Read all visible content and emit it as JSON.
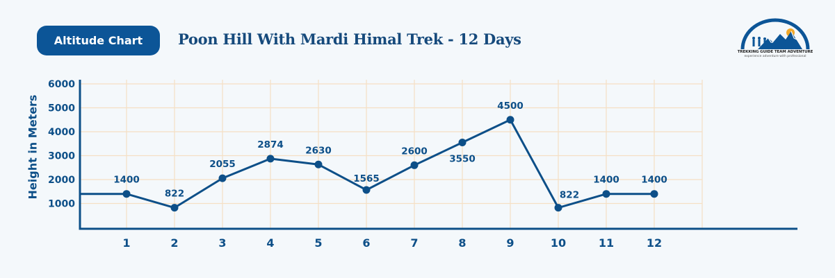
{
  "header": {
    "badge_label": "Altitude Chart",
    "title": "Poon Hill With Mardi Himal Trek - 12 Days"
  },
  "logo": {
    "name": "TREKKING GUIDE TEAM ADVENTURE",
    "tagline": "experience adventure with professional"
  },
  "colors": {
    "primary": "#0c5597",
    "line": "#0d4f88",
    "grid": "#f5dfc4",
    "background": "#f4f8fb"
  },
  "chart_data": {
    "type": "line",
    "title": "Poon Hill With Mardi Himal Trek - 12 Days",
    "xlabel": "",
    "ylabel": "Height in Meters",
    "categories": [
      "1",
      "2",
      "3",
      "4",
      "5",
      "6",
      "7",
      "8",
      "9",
      "10",
      "11",
      "12"
    ],
    "values": [
      1400,
      822,
      2055,
      2874,
      2630,
      1565,
      2600,
      3550,
      4500,
      822,
      1400,
      1400
    ],
    "data_labels": [
      "1400",
      "822",
      "2055",
      "2874",
      "2630",
      "1565",
      "2600",
      "3550",
      "4500",
      "822",
      "1400",
      "1400"
    ],
    "y_ticks": [
      1000,
      2000,
      3000,
      4000,
      5000,
      6000
    ],
    "ylim": [
      0,
      6000
    ],
    "grid": true,
    "legend": "none"
  }
}
